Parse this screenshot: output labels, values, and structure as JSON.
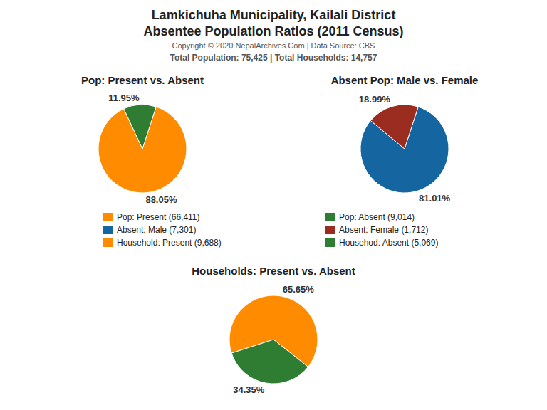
{
  "title": "Lamkichuha Municipality, Kailali District",
  "subtitle": "Absentee Population Ratios (2011 Census)",
  "annotations": [
    "Copyright © 2020 NepalArchives.Com | Data Source: CBS",
    "Total Population: 75,425 | Total Households: 14,757"
  ],
  "chart_data": [
    {
      "type": "pie",
      "title": "Pop: Present vs. Absent",
      "categories": [
        "Pop: Present (66,411)",
        "Pop: Absent (9,014)"
      ],
      "values": [
        88.05,
        11.95
      ],
      "value_labels": [
        "88.05%",
        "11.95%"
      ],
      "colors": [
        "#FF8C00",
        "#2E7D32"
      ],
      "data_labels": true
    },
    {
      "type": "pie",
      "title": "Absent Pop: Male vs. Female",
      "categories": [
        "Absent: Male (7,301)",
        "Absent: Female (1,712)"
      ],
      "values": [
        81.01,
        18.99
      ],
      "value_labels": [
        "81.01%",
        "18.99%"
      ],
      "colors": [
        "#1565A0",
        "#9B2D20"
      ],
      "data_labels": true
    },
    {
      "type": "pie",
      "title": "Households: Present vs. Absent",
      "categories": [
        "Household: Present (9,688)",
        "Househod: Absent (5,069)"
      ],
      "values": [
        65.65,
        34.35
      ],
      "value_labels": [
        "65.65%",
        "34.35%"
      ],
      "colors": [
        "#FF8C00",
        "#2E7D32"
      ],
      "data_labels": true
    }
  ]
}
